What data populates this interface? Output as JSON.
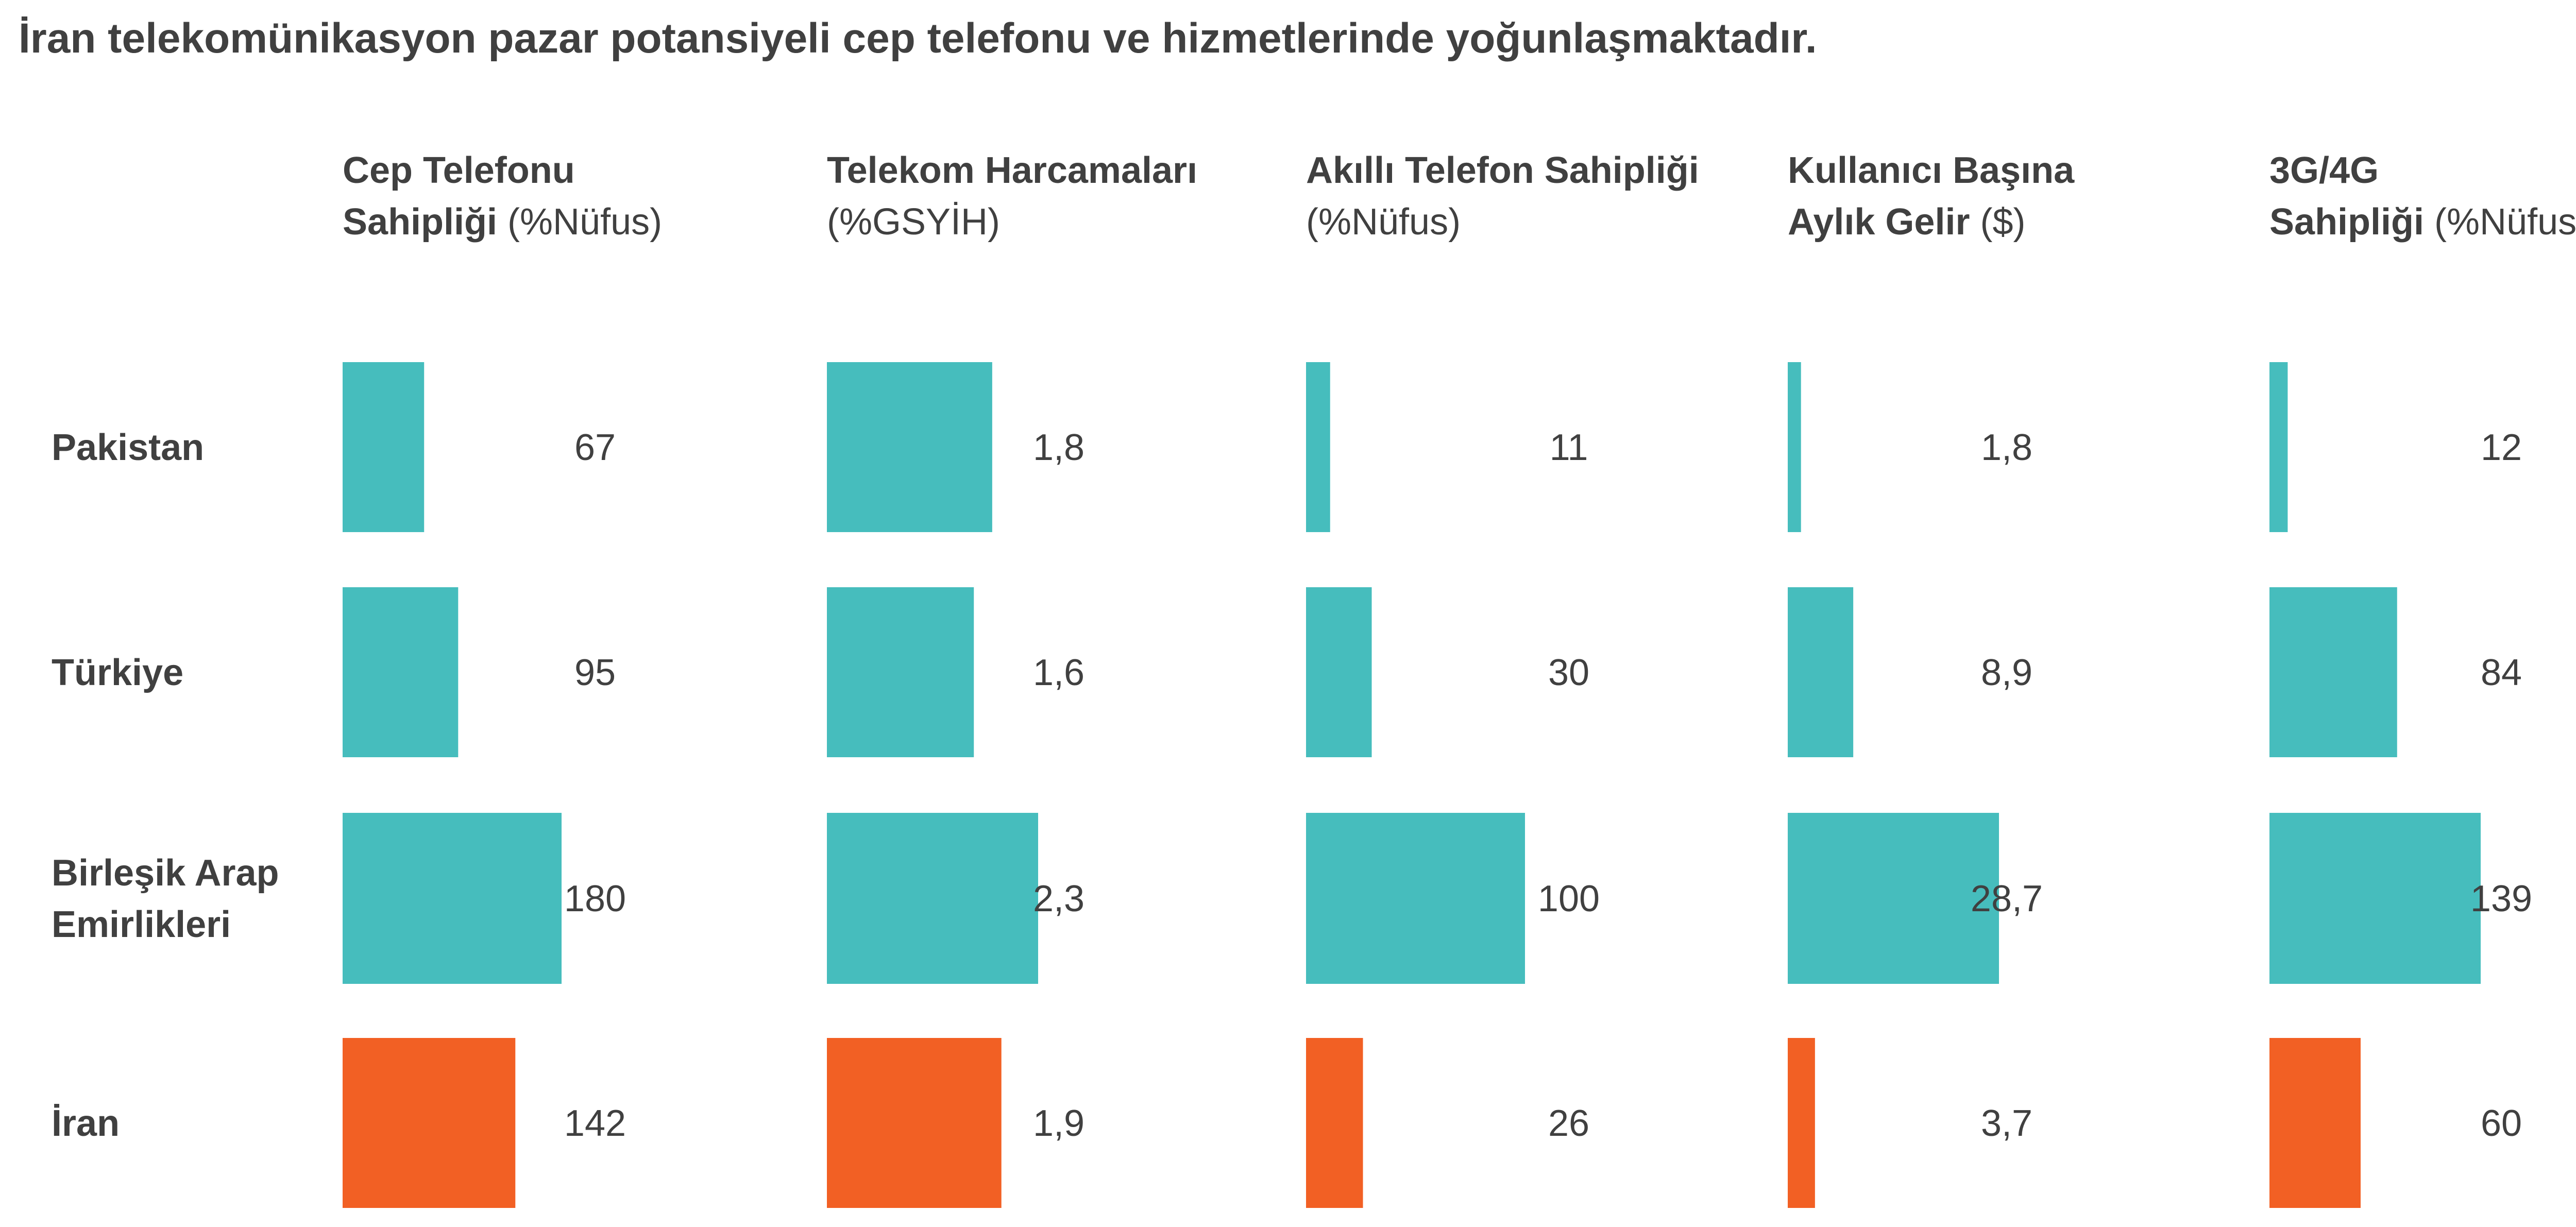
{
  "title": "İran telekomünikasyon pazar potansiyeli cep telefonu ve hizmetlerinde yoğunlaşmaktadır.",
  "colors": {
    "others": "#46BDBD",
    "highlight": "#F26024",
    "text": "#404040"
  },
  "chart_data": {
    "type": "bar",
    "orientation": "horizontal",
    "small_multiples": true,
    "title": "İran telekomünikasyon pazar potansiyeli cep telefonu ve hizmetlerinde yoğunlaşmaktadır.",
    "categories": [
      {
        "lines": [
          "Pakistan"
        ],
        "highlight": false
      },
      {
        "lines": [
          "Türkiye"
        ],
        "highlight": false
      },
      {
        "lines": [
          "Birleşik Arap",
          "Emirlikleri"
        ],
        "highlight": false
      },
      {
        "lines": [
          "İran"
        ],
        "highlight": true
      }
    ],
    "series": [
      {
        "header": [
          {
            "bold": "Cep Telefonu"
          },
          {
            "bold": "Sahipliği",
            "normal": " (%Nüfus)"
          }
        ],
        "values": [
          67,
          95,
          180,
          142
        ],
        "labels": [
          "67",
          "95",
          "180",
          "142"
        ],
        "max": 180
      },
      {
        "header": [
          {
            "bold": "Telekom Harcamaları"
          },
          {
            "normal": "(%GSYİH)"
          }
        ],
        "values": [
          1.8,
          1.6,
          2.3,
          1.9
        ],
        "labels": [
          "1,8",
          "1,6",
          "2,3",
          "1,9"
        ],
        "max": 2.3
      },
      {
        "header": [
          {
            "bold": "Akıllı Telefon Sahipliği"
          },
          {
            "normal": "(%Nüfus)"
          }
        ],
        "values": [
          11,
          30,
          100,
          26
        ],
        "labels": [
          "11",
          "30",
          "100",
          "26"
        ],
        "max": 100
      },
      {
        "header": [
          {
            "bold": "Kullanıcı Başına"
          },
          {
            "bold": "Aylık Gelir",
            "normal": " ($)"
          }
        ],
        "values": [
          1.8,
          8.9,
          28.7,
          3.7
        ],
        "labels": [
          "1,8",
          "8,9",
          "28,7",
          "3,7"
        ],
        "max": 28.7
      },
      {
        "header": [
          {
            "bold": "3G/4G"
          },
          {
            "bold": "Sahipliği",
            "normal": " (%Nüfus)"
          }
        ],
        "values": [
          12,
          84,
          139,
          60
        ],
        "labels": [
          "12",
          "84",
          "139",
          "60"
        ],
        "max": 139
      }
    ]
  }
}
